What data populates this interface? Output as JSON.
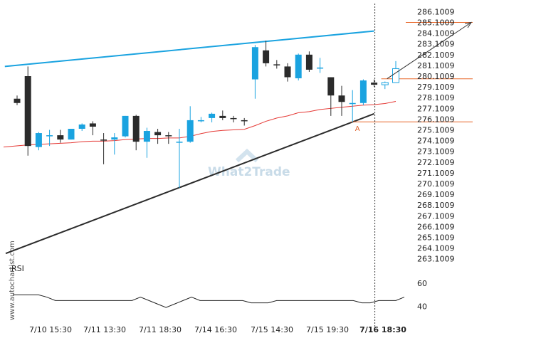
{
  "chart_data": {
    "type": "candlestick",
    "watermark": "What2Trade",
    "side_watermark": "www.autochartist.com",
    "y_axis": {
      "ticks": [
        "286.1009",
        "285.1009",
        "284.1009",
        "283.1009",
        "282.1009",
        "281.1009",
        "280.1009",
        "279.1009",
        "278.1009",
        "277.1009",
        "276.1009",
        "275.1009",
        "274.1009",
        "273.1009",
        "272.1009",
        "271.1009",
        "270.1009",
        "269.1009",
        "268.1009",
        "267.1009",
        "266.1009",
        "265.1009",
        "264.1009",
        "263.1009"
      ],
      "range": [
        262.6,
        286.4
      ]
    },
    "x_axis": {
      "ticks": [
        "7/10 15:30",
        "7/11 13:30",
        "7/11 18:30",
        "7/14 16:30",
        "7/15 14:30",
        "7/15 19:30",
        "7/16 18:30"
      ],
      "highlighted_tick": "7/16 18:30"
    },
    "candles": [
      {
        "o": 278.0,
        "h": 278.3,
        "l": 277.4,
        "c": 277.6
      },
      {
        "o": 280.1,
        "h": 281.0,
        "l": 272.7,
        "c": 273.6
      },
      {
        "o": 273.5,
        "h": 274.9,
        "l": 273.2,
        "c": 274.8
      },
      {
        "o": 274.6,
        "h": 275.1,
        "l": 273.6,
        "c": 274.6
      },
      {
        "o": 274.6,
        "h": 275.1,
        "l": 273.9,
        "c": 274.2
      },
      {
        "o": 274.2,
        "h": 275.2,
        "l": 274.2,
        "c": 275.2
      },
      {
        "o": 275.2,
        "h": 275.7,
        "l": 275.0,
        "c": 275.6
      },
      {
        "o": 275.7,
        "h": 275.9,
        "l": 274.6,
        "c": 275.4
      },
      {
        "o": 274.2,
        "h": 274.8,
        "l": 271.9,
        "c": 274.1
      },
      {
        "o": 274.2,
        "h": 274.8,
        "l": 272.8,
        "c": 274.4
      },
      {
        "o": 274.5,
        "h": 276.4,
        "l": 274.4,
        "c": 276.4
      },
      {
        "o": 276.4,
        "h": 276.5,
        "l": 273.2,
        "c": 274.0
      },
      {
        "o": 274.0,
        "h": 275.3,
        "l": 272.5,
        "c": 275.0
      },
      {
        "o": 274.9,
        "h": 275.2,
        "l": 273.8,
        "c": 274.6
      },
      {
        "o": 274.6,
        "h": 274.9,
        "l": 273.8,
        "c": 274.5
      },
      {
        "o": 274.0,
        "h": 275.2,
        "l": 269.7,
        "c": 274.0
      },
      {
        "o": 274.0,
        "h": 277.3,
        "l": 273.9,
        "c": 276.0
      },
      {
        "o": 275.9,
        "h": 276.3,
        "l": 275.8,
        "c": 276.0
      },
      {
        "o": 276.2,
        "h": 276.7,
        "l": 275.8,
        "c": 276.6
      },
      {
        "o": 276.4,
        "h": 276.9,
        "l": 276.0,
        "c": 276.2
      },
      {
        "o": 276.2,
        "h": 276.4,
        "l": 275.8,
        "c": 276.1
      },
      {
        "o": 276.0,
        "h": 276.2,
        "l": 275.5,
        "c": 275.9
      },
      {
        "o": 279.8,
        "h": 283.0,
        "l": 278.0,
        "c": 282.8
      },
      {
        "o": 282.5,
        "h": 283.4,
        "l": 281.0,
        "c": 281.3
      },
      {
        "o": 281.2,
        "h": 281.6,
        "l": 280.8,
        "c": 281.1
      },
      {
        "o": 281.0,
        "h": 281.3,
        "l": 279.6,
        "c": 280.0
      },
      {
        "o": 279.9,
        "h": 282.2,
        "l": 279.7,
        "c": 282.1
      },
      {
        "o": 282.1,
        "h": 282.4,
        "l": 280.5,
        "c": 280.7
      },
      {
        "o": 280.9,
        "h": 281.8,
        "l": 280.4,
        "c": 280.9
      },
      {
        "o": 280.0,
        "h": 280.0,
        "l": 276.4,
        "c": 278.3
      },
      {
        "o": 278.3,
        "h": 279.2,
        "l": 276.4,
        "c": 277.7
      },
      {
        "o": 277.5,
        "h": 278.8,
        "l": 275.8,
        "c": 277.6
      },
      {
        "o": 277.6,
        "h": 279.8,
        "l": 277.4,
        "c": 279.7
      },
      {
        "o": 279.5,
        "h": 279.8,
        "l": 279.1,
        "c": 279.3
      },
      {
        "o": 279.3,
        "h": 279.6,
        "l": 278.9,
        "c": 279.5
      },
      {
        "o": 279.5,
        "h": 281.5,
        "l": 279.5,
        "c": 280.8
      }
    ],
    "projected_candle_count": 2,
    "moving_average": [
      273.5,
      273.7,
      273.75,
      273.8,
      273.85,
      273.9,
      274.0,
      274.05,
      274.05,
      274.1,
      274.2,
      274.25,
      274.3,
      274.3,
      274.35,
      274.35,
      274.5,
      274.75,
      274.95,
      275.05,
      275.1,
      275.15,
      275.5,
      275.9,
      276.2,
      276.4,
      276.7,
      276.8,
      277.0,
      277.1,
      277.2,
      277.3,
      277.4,
      277.45,
      277.55,
      277.75
    ],
    "upper_trendline": {
      "start": {
        "index": -1.0,
        "price": 281.0
      },
      "end": {
        "index": 33.0,
        "price": 284.3
      }
    },
    "lower_trendline": {
      "start": {
        "index": -1.0,
        "price": 263.6
      },
      "end": {
        "index": 33.0,
        "price": 276.6
      }
    },
    "target_level": 285.1009,
    "entry_level": 279.85,
    "support_level": 275.85,
    "marker_label": "A",
    "marker_index": 31.5,
    "vertical_marker_index": 33.0,
    "forecast_arrow": {
      "start": {
        "index": 34.0,
        "price": 279.6
      },
      "end": {
        "index": 41.0,
        "price": 285.1
      }
    },
    "rsi": {
      "label": "RSI",
      "ticks": [
        "60",
        "40"
      ],
      "range": [
        33,
        66
      ],
      "values": [
        50,
        50,
        50,
        50,
        48,
        45,
        45,
        45,
        45,
        45,
        45,
        45,
        45,
        45,
        45,
        48,
        45,
        42,
        39,
        42,
        45,
        48,
        45,
        45,
        45,
        45,
        45,
        45,
        43,
        43,
        43,
        45,
        45,
        45,
        45,
        45,
        45,
        45,
        45,
        45,
        45,
        43,
        43,
        45,
        45,
        45,
        48
      ]
    },
    "colors": {
      "bull": "#1aa3e0",
      "bear": "#2b2b2b",
      "upper_trendline": "#1aa3e0",
      "lower_trendline": "#2b2b2b",
      "moving_average": "#e53935",
      "levels": "#e8692c",
      "forecast_arrow": "#333333",
      "rsi": "#222222"
    }
  }
}
